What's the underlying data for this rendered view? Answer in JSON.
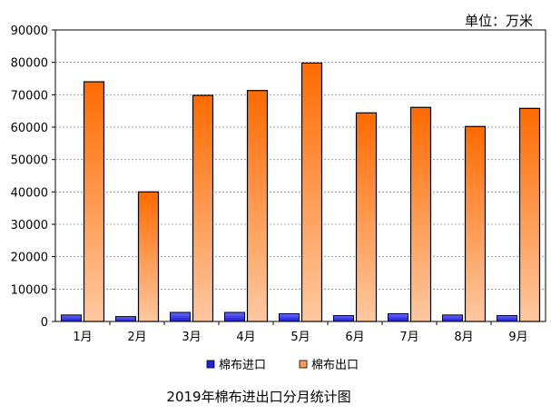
{
  "chart_data": {
    "type": "bar",
    "title": "2019年棉布进出口分月统计图",
    "unit_label": "单位：万米",
    "categories": [
      "1月",
      "2月",
      "3月",
      "4月",
      "5月",
      "6月",
      "7月",
      "8月",
      "9月"
    ],
    "series": [
      {
        "name": "棉布进口",
        "values": [
          2000,
          1500,
          2800,
          2800,
          2400,
          1800,
          2400,
          2000,
          1800
        ]
      },
      {
        "name": "棉布出口",
        "values": [
          74000,
          40000,
          69800,
          71300,
          79800,
          64400,
          66100,
          60200,
          65800
        ]
      }
    ],
    "ylim": [
      0,
      90000
    ],
    "yticks": [
      "0",
      "10000",
      "20000",
      "30000",
      "40000",
      "50000",
      "60000",
      "70000",
      "80000",
      "90000"
    ],
    "grid": true,
    "legend_position": "bottom",
    "colors": {
      "import_top": "#6a6aff",
      "import_bottom": "#1a1acc",
      "export_top": "#ff6a00",
      "export_bottom": "#ffc8a0"
    }
  }
}
